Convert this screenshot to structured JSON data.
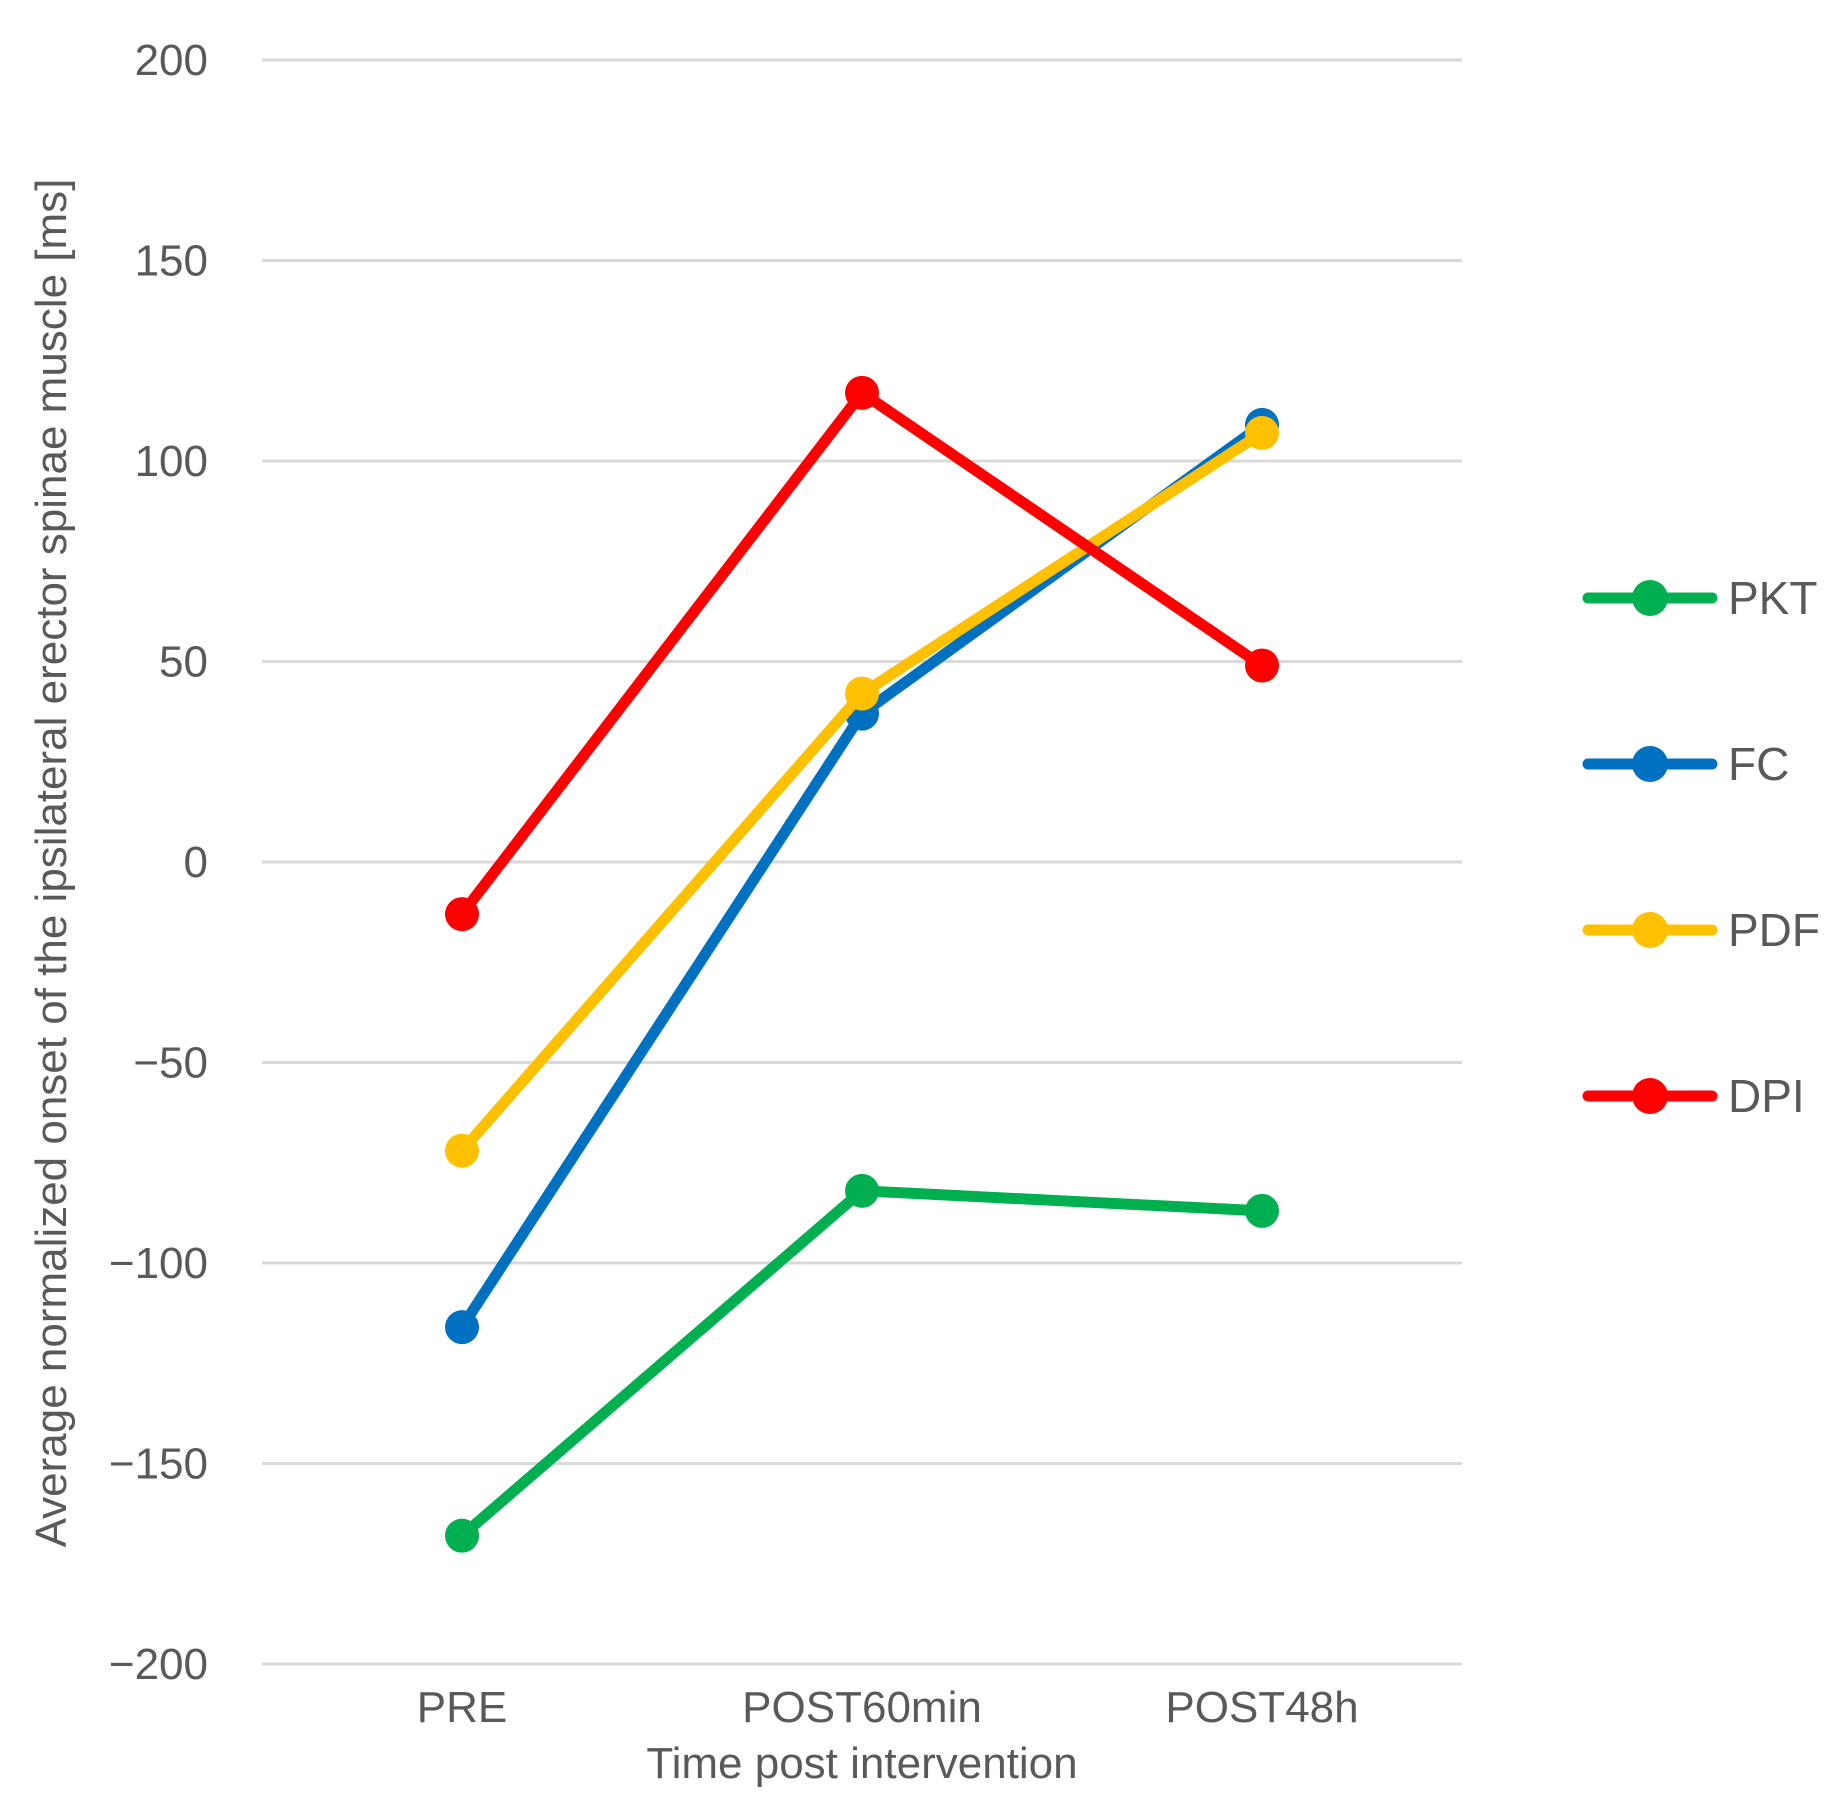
{
  "chart_data": {
    "type": "line",
    "title": "",
    "xlabel": "Time post intervention",
    "ylabel": "Average normalized onset of the ipsilateral erector spinae muscle  [ms]",
    "categories": [
      "PRE",
      "POST60min",
      "POST48h"
    ],
    "ylim": [
      -200,
      200
    ],
    "yticks": [
      200,
      150,
      100,
      50,
      0,
      -50,
      -100,
      -150,
      -200
    ],
    "ytick_labels": [
      "200",
      "150",
      "100",
      "50",
      "0",
      "−50",
      "−100",
      "−150",
      "−200"
    ],
    "grid": true,
    "legend_position": "right",
    "series": [
      {
        "name": "PKT",
        "color": "#00b050",
        "values": [
          -168,
          -82,
          -87
        ]
      },
      {
        "name": "FC",
        "color": "#0070c0",
        "values": [
          -116,
          37,
          109
        ]
      },
      {
        "name": "PDF",
        "color": "#ffc000",
        "values": [
          -72,
          42,
          107
        ]
      },
      {
        "name": "DPI",
        "color": "#ff0000",
        "values": [
          -13,
          117,
          49
        ]
      }
    ]
  }
}
